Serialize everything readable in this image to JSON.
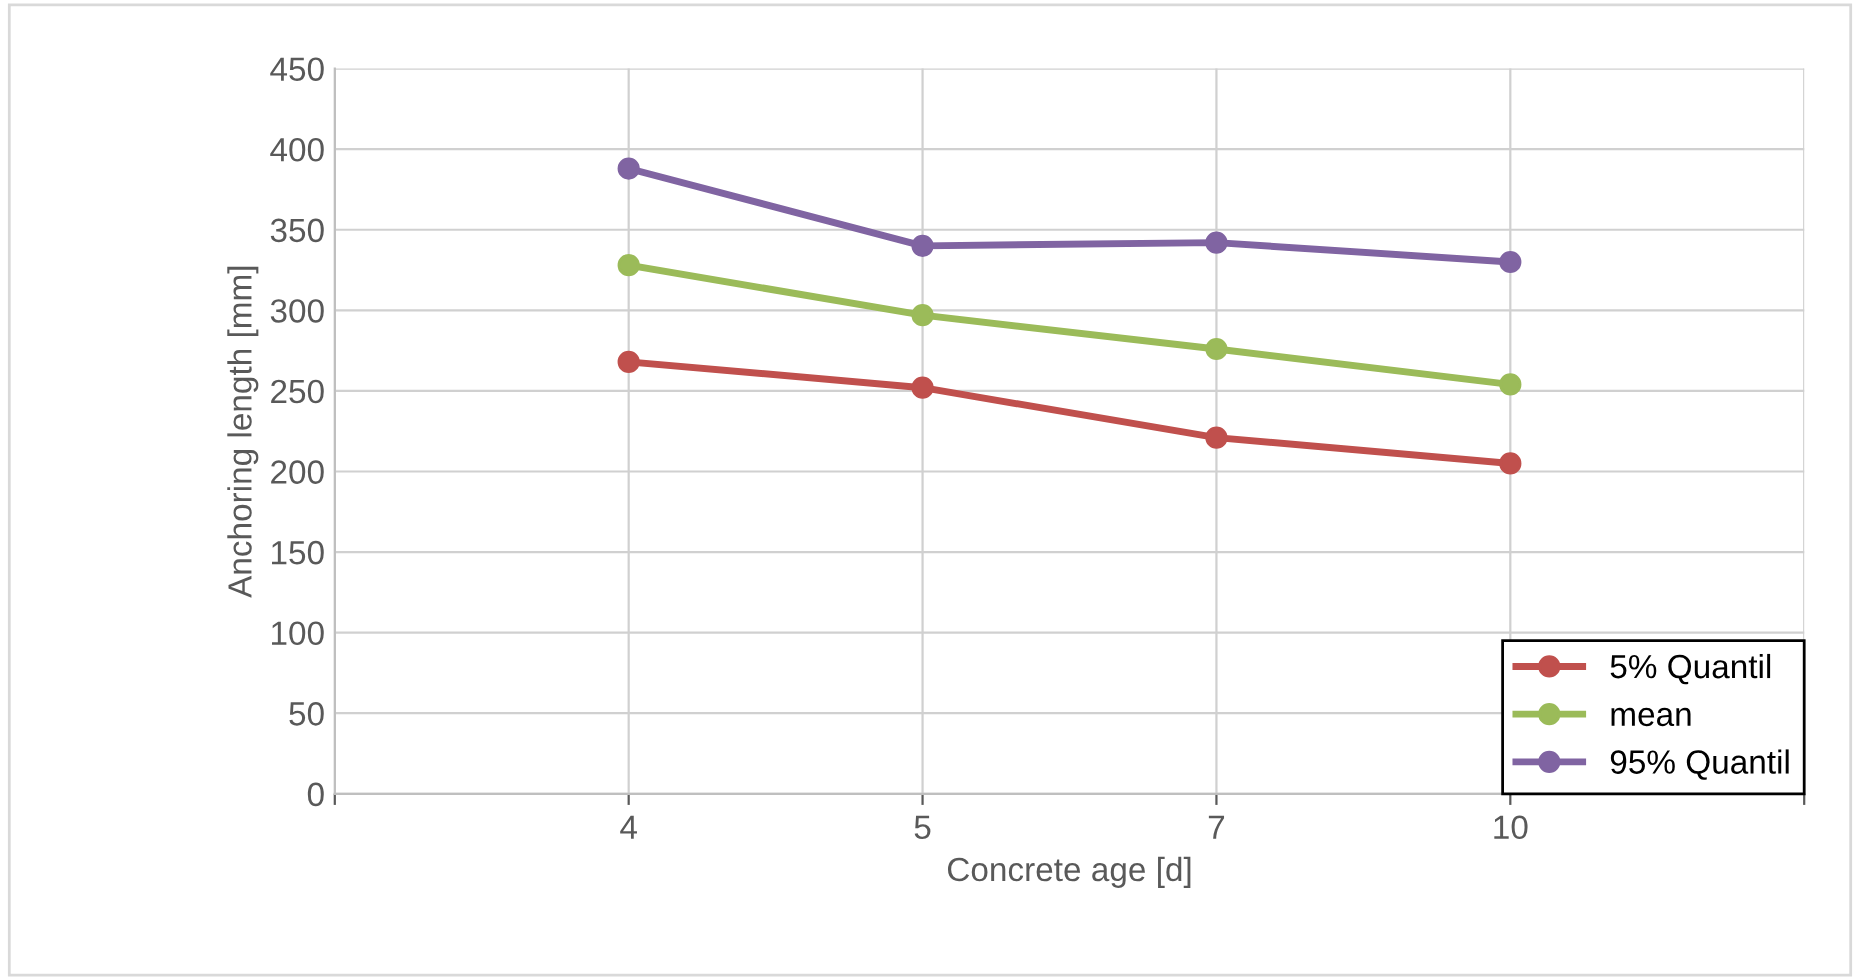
{
  "chart_data": {
    "type": "line",
    "xlabel": "Concrete age [d]",
    "ylabel": "Anchoring length [mm]",
    "categories": [
      null,
      "4",
      "5",
      "7",
      "10",
      null
    ],
    "series": [
      {
        "name": "5% Quantil",
        "color": "#c0504d",
        "values": [
          null,
          268,
          252,
          221,
          205,
          null
        ]
      },
      {
        "name": "mean",
        "color": "#9bbb59",
        "values": [
          null,
          328,
          297,
          276,
          254,
          null
        ]
      },
      {
        "name": "95% Quantil",
        "color": "#8064a2",
        "values": [
          null,
          388,
          340,
          342,
          330,
          null
        ]
      }
    ],
    "ylim": [
      0,
      450
    ],
    "yticks": [
      0,
      50,
      100,
      150,
      200,
      250,
      300,
      350,
      400,
      450
    ],
    "grid": true,
    "legend": "bottom right",
    "marker": "circle",
    "line_style": "solid"
  }
}
